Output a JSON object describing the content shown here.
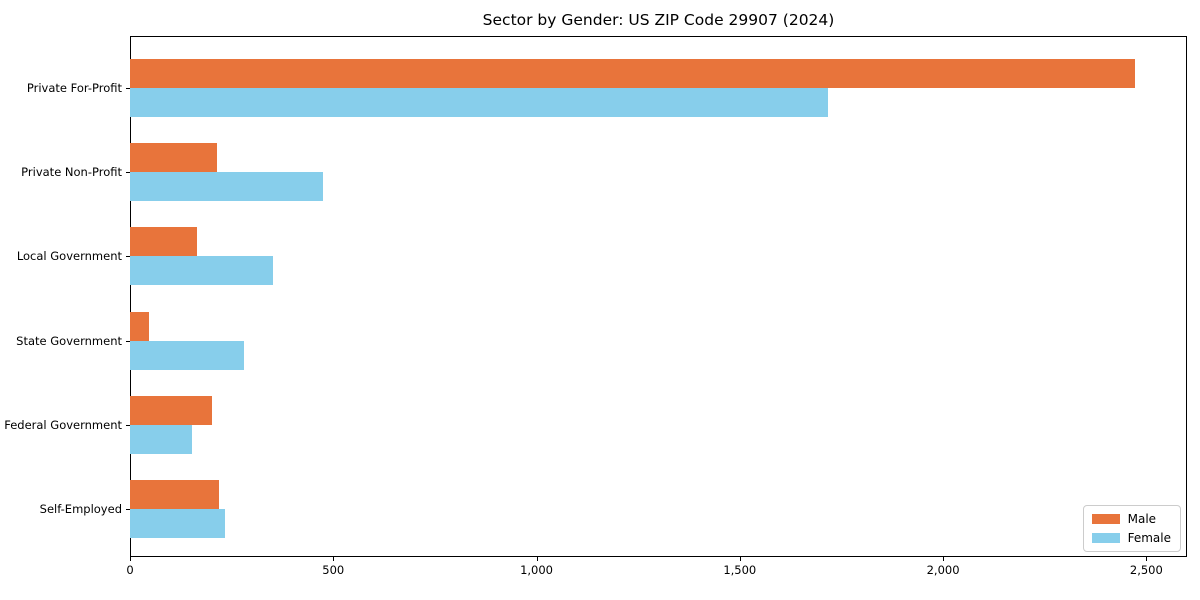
{
  "chart_data": {
    "type": "bar",
    "orientation": "horizontal",
    "title": "Sector by Gender: US ZIP Code 29907 (2024)",
    "xlabel": "",
    "ylabel": "",
    "categories": [
      "Private For-Profit",
      "Private Non-Profit",
      "Local Government",
      "State Government",
      "Federal Government",
      "Self-Employed"
    ],
    "series": [
      {
        "name": "Male",
        "color": "#E8743B",
        "values": [
          2473,
          214,
          165,
          47,
          202,
          219
        ]
      },
      {
        "name": "Female",
        "color": "#87CEEB",
        "values": [
          1718,
          474,
          352,
          280,
          152,
          234
        ]
      }
    ],
    "xlim": [
      0,
      2600
    ],
    "xticks": [
      0,
      500,
      1000,
      1500,
      2000,
      2500
    ],
    "xtick_labels": [
      "0",
      "500",
      "1,000",
      "1,500",
      "2,000",
      "2,500"
    ],
    "grid": false,
    "legend_position": "lower right",
    "frame_color": "#000000"
  }
}
